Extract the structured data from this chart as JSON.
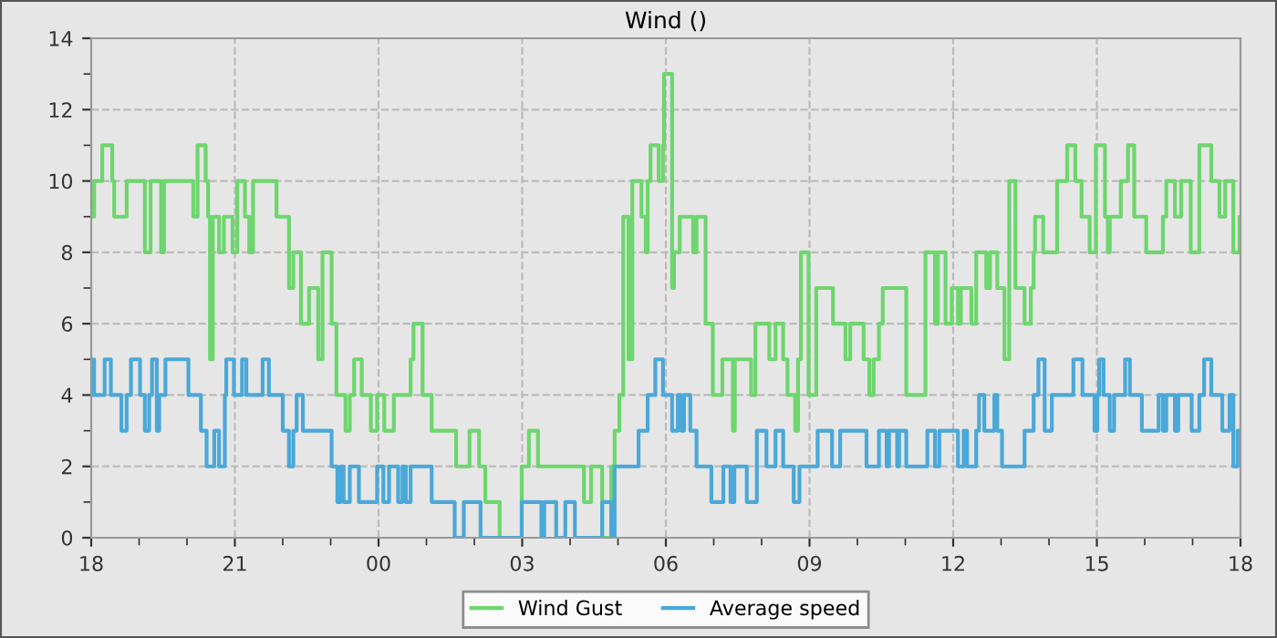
{
  "chart_data": {
    "type": "step",
    "title": "Wind ()",
    "xlim": [
      18,
      42
    ],
    "ylim": [
      0,
      14
    ],
    "xticks": [
      {
        "value": 18,
        "label": "18"
      },
      {
        "value": 19,
        "label": null
      },
      {
        "value": 20,
        "label": null
      },
      {
        "value": 21,
        "label": "21"
      },
      {
        "value": 22,
        "label": null
      },
      {
        "value": 23,
        "label": null
      },
      {
        "value": 24,
        "label": "00"
      },
      {
        "value": 25,
        "label": null
      },
      {
        "value": 26,
        "label": null
      },
      {
        "value": 27,
        "label": "03"
      },
      {
        "value": 28,
        "label": null
      },
      {
        "value": 29,
        "label": null
      },
      {
        "value": 30,
        "label": "06"
      },
      {
        "value": 31,
        "label": null
      },
      {
        "value": 32,
        "label": null
      },
      {
        "value": 33,
        "label": "09"
      },
      {
        "value": 34,
        "label": null
      },
      {
        "value": 35,
        "label": null
      },
      {
        "value": 36,
        "label": "12"
      },
      {
        "value": 37,
        "label": null
      },
      {
        "value": 38,
        "label": null
      },
      {
        "value": 39,
        "label": "15"
      },
      {
        "value": 40,
        "label": null
      },
      {
        "value": 41,
        "label": null
      },
      {
        "value": 42,
        "label": "18"
      }
    ],
    "yticks": [
      0,
      {
        "value": 1,
        "label": null
      },
      2,
      {
        "value": 3,
        "label": null
      },
      4,
      {
        "value": 5,
        "label": null
      },
      6,
      {
        "value": 7,
        "label": null
      },
      8,
      {
        "value": 9,
        "label": null
      },
      10,
      {
        "value": 11,
        "label": null
      },
      12,
      {
        "value": 13,
        "label": null
      },
      14
    ],
    "grid": true,
    "legend": "bottom",
    "series": [
      {
        "name": "Wind Gust",
        "color": "#6dd66d",
        "x": [
          18.0,
          18.06,
          18.23,
          18.44,
          18.48,
          18.74,
          19.12,
          19.24,
          19.46,
          19.52,
          20.13,
          20.22,
          20.39,
          20.44,
          20.48,
          20.54,
          20.67,
          20.77,
          20.95,
          21.05,
          21.21,
          21.3,
          21.38,
          21.87,
          22.13,
          22.22,
          22.38,
          22.55,
          22.74,
          22.83,
          23.02,
          23.12,
          23.31,
          23.4,
          23.49,
          23.65,
          23.84,
          23.97,
          24.12,
          24.32,
          24.67,
          24.73,
          24.92,
          25.11,
          25.62,
          25.9,
          26.1,
          26.23,
          26.53,
          26.99,
          27.14,
          27.33,
          28.29,
          28.44,
          28.67,
          28.86,
          28.93,
          29.03,
          29.11,
          29.22,
          29.3,
          29.49,
          29.58,
          29.62,
          29.68,
          29.85,
          29.94,
          29.96,
          30.13,
          30.17,
          30.29,
          30.57,
          30.64,
          30.83,
          30.98,
          31.18,
          31.4,
          31.44,
          31.78,
          31.87,
          32.16,
          32.29,
          32.45,
          32.54,
          32.7,
          32.76,
          32.82,
          32.98,
          33.14,
          33.49,
          33.75,
          33.85,
          34.13,
          34.25,
          34.34,
          34.45,
          34.53,
          35.02,
          35.42,
          35.62,
          35.68,
          35.84,
          35.97,
          36.1,
          36.16,
          36.38,
          36.48,
          36.69,
          36.77,
          36.92,
          37.07,
          37.17,
          37.3,
          37.49,
          37.62,
          37.68,
          37.71,
          37.88,
          38.17,
          38.38,
          38.55,
          38.68,
          38.85,
          38.98,
          39.17,
          39.23,
          39.27,
          39.5,
          39.65,
          39.78,
          40.03,
          40.38,
          40.45,
          40.63,
          40.76,
          40.96,
          41.14,
          41.39,
          41.56,
          41.68,
          41.85,
          41.98,
          42.0
        ],
        "values": [
          9,
          10,
          11,
          10,
          9,
          10,
          8,
          10,
          8,
          10,
          9,
          11,
          10,
          9,
          5,
          9,
          8,
          9,
          8,
          10,
          9,
          8,
          10,
          9,
          7,
          8,
          6,
          7,
          5,
          8,
          6,
          4,
          3,
          4,
          5,
          4,
          3,
          4,
          3,
          4,
          5,
          6,
          4,
          3,
          2,
          3,
          2,
          1,
          0,
          2,
          3,
          2,
          1,
          2,
          0,
          2,
          3,
          4,
          9,
          5,
          10,
          9,
          8,
          10,
          11,
          10,
          11,
          13,
          7,
          8,
          9,
          8,
          9,
          6,
          4,
          5,
          3,
          5,
          4,
          6,
          5,
          6,
          5,
          4,
          3,
          5,
          8,
          4,
          7,
          6,
          5,
          6,
          5,
          4,
          5,
          6,
          7,
          4,
          8,
          6,
          8,
          6,
          7,
          6,
          7,
          6,
          8,
          7,
          8,
          7,
          5,
          10,
          7,
          6,
          7,
          8,
          9,
          8,
          10,
          11,
          10,
          9,
          8,
          11,
          9,
          8,
          9,
          10,
          11,
          9,
          8,
          9,
          10,
          9,
          10,
          8,
          11,
          10,
          9,
          10,
          8,
          9,
          9
        ]
      },
      {
        "name": "Average speed",
        "color": "#4aa8d8",
        "x": [
          18.0,
          18.03,
          18.06,
          18.28,
          18.41,
          18.63,
          18.74,
          18.83,
          19.02,
          19.12,
          19.21,
          19.27,
          19.37,
          19.42,
          19.55,
          20.03,
          20.29,
          20.41,
          20.57,
          20.67,
          20.79,
          20.82,
          20.98,
          21.15,
          21.24,
          21.58,
          21.71,
          22.0,
          22.13,
          22.22,
          22.29,
          22.42,
          23.02,
          23.14,
          23.21,
          23.27,
          23.4,
          23.59,
          23.97,
          24.1,
          24.22,
          24.41,
          24.5,
          24.57,
          24.67,
          24.71,
          25.11,
          25.59,
          25.78,
          26.13,
          26.99,
          27.4,
          27.46,
          27.71,
          27.9,
          28.1,
          28.67,
          28.86,
          28.93,
          29.43,
          29.62,
          29.78,
          29.94,
          30.13,
          30.25,
          30.32,
          30.38,
          30.51,
          30.64,
          30.95,
          31.2,
          31.35,
          31.43,
          31.69,
          31.9,
          32.1,
          32.29,
          32.45,
          32.67,
          32.79,
          33.17,
          33.47,
          33.64,
          34.19,
          34.45,
          34.61,
          34.66,
          34.83,
          34.87,
          35.02,
          35.46,
          35.62,
          35.71,
          36.1,
          36.22,
          36.29,
          36.48,
          36.54,
          36.65,
          36.86,
          36.92,
          37.02,
          37.49,
          37.68,
          37.78,
          37.91,
          38.06,
          38.51,
          38.7,
          38.95,
          39.01,
          39.05,
          39.14,
          39.27,
          39.36,
          39.59,
          39.69,
          39.94,
          40.29,
          40.38,
          40.45,
          40.63,
          40.7,
          40.98,
          41.14,
          41.24,
          41.39,
          41.62,
          41.77,
          41.85,
          41.94,
          42.0
        ],
        "values": [
          4,
          5,
          4,
          5,
          4,
          3,
          4,
          5,
          4,
          3,
          4,
          5,
          3,
          4,
          5,
          4,
          3,
          2,
          3,
          2,
          4,
          5,
          4,
          5,
          4,
          5,
          4,
          3,
          2,
          3,
          4,
          3,
          2,
          1,
          2,
          1,
          2,
          1,
          2,
          1,
          2,
          1,
          2,
          1,
          2,
          2,
          1,
          0,
          1,
          0,
          1,
          0,
          1,
          0,
          1,
          0,
          1,
          0,
          2,
          3,
          4,
          5,
          4,
          3,
          4,
          3,
          4,
          3,
          2,
          1,
          2,
          1,
          2,
          1,
          3,
          2,
          3,
          2,
          1,
          2,
          3,
          2,
          3,
          2,
          3,
          2,
          3,
          2,
          3,
          2,
          3,
          2,
          3,
          2,
          3,
          2,
          3,
          4,
          3,
          4,
          3,
          2,
          3,
          4,
          5,
          3,
          4,
          5,
          4,
          3,
          4,
          5,
          4,
          3,
          4,
          5,
          4,
          3,
          4,
          3,
          4,
          3,
          4,
          3,
          4,
          5,
          4,
          3,
          4,
          2,
          3,
          3
        ]
      }
    ]
  }
}
